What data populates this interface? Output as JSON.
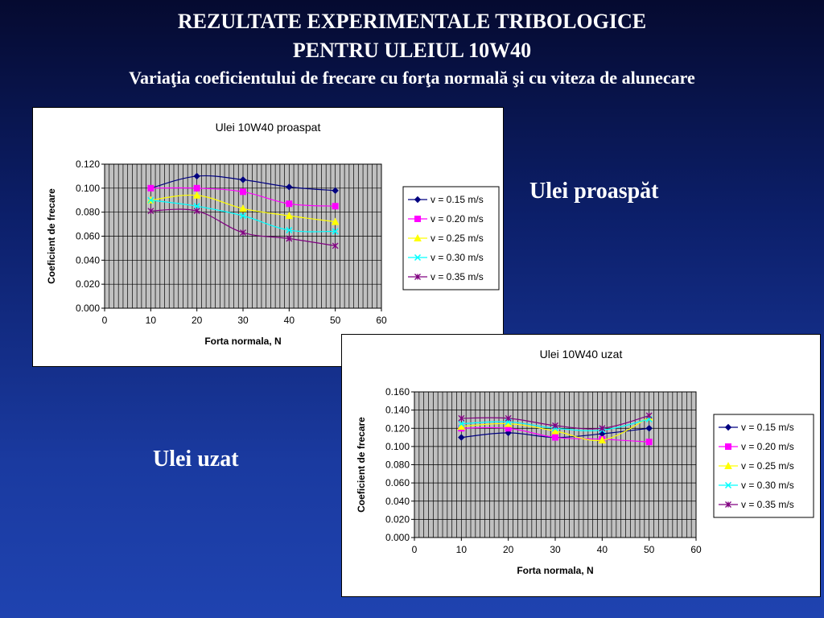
{
  "slide": {
    "title_line1": "REZULTATE EXPERIMENTALE TRIBOLOGICE",
    "title_line2": "PENTRU ULEIUL 10W40",
    "subtitle": "Variaţia coeficientului de frecare cu forţa normală şi cu viteza de alunecare",
    "label_fresh": "Ulei proaspăt",
    "label_used": "Ulei uzat"
  },
  "chart_data": [
    {
      "type": "line",
      "title": "Ulei 10W40 proaspat",
      "xlabel": "Forta normala, N",
      "ylabel": "Coeficient de frecare",
      "xlim": [
        0,
        60
      ],
      "ylim": [
        0,
        0.12
      ],
      "xticks": [
        "0",
        "10",
        "20",
        "30",
        "40",
        "50",
        "60"
      ],
      "yticks": [
        "0.000",
        "0.020",
        "0.040",
        "0.060",
        "0.080",
        "0.100",
        "0.120"
      ],
      "grid": true,
      "legend": "right",
      "x": [
        10,
        20,
        30,
        40,
        50
      ],
      "series": [
        {
          "name": "v = 0.15 m/s",
          "color": "#000080",
          "marker": "diamond",
          "values": [
            0.1,
            0.11,
            0.107,
            0.101,
            0.098
          ]
        },
        {
          "name": "v = 0.20 m/s",
          "color": "#ff00ff",
          "marker": "square",
          "values": [
            0.1,
            0.1,
            0.097,
            0.087,
            0.085
          ]
        },
        {
          "name": "v = 0.25 m/s",
          "color": "#ffff00",
          "marker": "triangle",
          "values": [
            0.09,
            0.094,
            0.083,
            0.077,
            0.072
          ]
        },
        {
          "name": "v = 0.30 m/s",
          "color": "#00ffff",
          "marker": "x",
          "values": [
            0.09,
            0.085,
            0.077,
            0.065,
            0.064
          ]
        },
        {
          "name": "v = 0.35 m/s",
          "color": "#800080",
          "marker": "star",
          "values": [
            0.081,
            0.081,
            0.063,
            0.058,
            0.052
          ]
        }
      ]
    },
    {
      "type": "line",
      "title": "Ulei 10W40 uzat",
      "xlabel": "Forta normala, N",
      "ylabel": "Coeficient de frecare",
      "xlim": [
        0,
        60
      ],
      "ylim": [
        0,
        0.16
      ],
      "xticks": [
        "0",
        "10",
        "20",
        "30",
        "40",
        "50",
        "60"
      ],
      "yticks": [
        "0.000",
        "0.020",
        "0.040",
        "0.060",
        "0.080",
        "0.100",
        "0.120",
        "0.140",
        "0.160"
      ],
      "grid": true,
      "legend": "right",
      "x": [
        10,
        20,
        30,
        40,
        50
      ],
      "series": [
        {
          "name": "v = 0.15 m/s",
          "color": "#000080",
          "marker": "diamond",
          "values": [
            0.11,
            0.115,
            0.11,
            0.114,
            0.12
          ]
        },
        {
          "name": "v = 0.20 m/s",
          "color": "#ff00ff",
          "marker": "square",
          "values": [
            0.12,
            0.12,
            0.11,
            0.108,
            0.105
          ]
        },
        {
          "name": "v = 0.25 m/s",
          "color": "#ffff00",
          "marker": "triangle",
          "values": [
            0.122,
            0.125,
            0.117,
            0.107,
            0.132
          ]
        },
        {
          "name": "v = 0.30 m/s",
          "color": "#00ffff",
          "marker": "x",
          "values": [
            0.125,
            0.127,
            0.12,
            0.118,
            0.13
          ]
        },
        {
          "name": "v = 0.35 m/s",
          "color": "#800080",
          "marker": "star",
          "values": [
            0.131,
            0.131,
            0.123,
            0.12,
            0.134
          ]
        }
      ]
    }
  ]
}
